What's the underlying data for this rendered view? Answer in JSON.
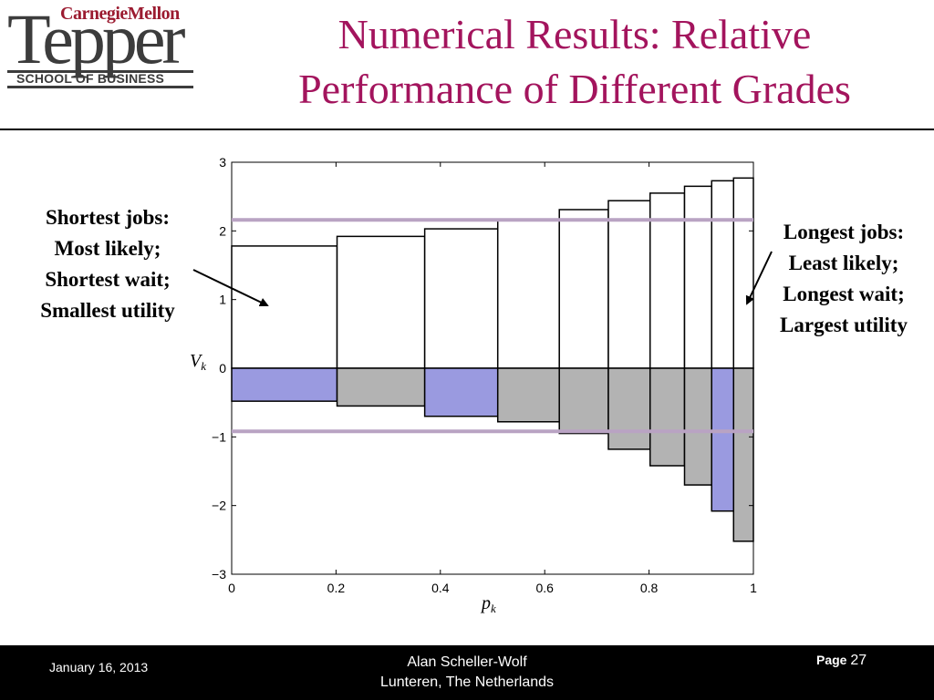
{
  "header": {
    "logo": {
      "top_line": "CarnegieMellon",
      "main": "Tepper",
      "sub": "SCHOOL OF BUSINESS"
    },
    "title_line1": "Numerical Results: Relative",
    "title_line2": "Performance of Different Grades"
  },
  "annotations": {
    "left": [
      "Shortest jobs:",
      "Most likely;",
      "Shortest wait;",
      "Smallest utility"
    ],
    "right": [
      "Longest jobs:",
      "Least likely;",
      "Longest wait;",
      "Largest utility"
    ]
  },
  "chart_data": {
    "type": "bar",
    "xlabel": "p_k",
    "ylabel": "V_k",
    "xlim": [
      0,
      1
    ],
    "ylim": [
      -3,
      3
    ],
    "xticks": [
      "0",
      "0.2",
      "0.4",
      "0.6",
      "0.8",
      "1"
    ],
    "yticks": [
      "3",
      "2",
      "1",
      "0",
      "−1",
      "−2",
      "−3"
    ],
    "grades": [
      {
        "x_start": 0.0,
        "x_end": 0.202,
        "pos": 1.78,
        "neg": -0.48,
        "highlight": true
      },
      {
        "x_start": 0.202,
        "x_end": 0.37,
        "pos": 1.92,
        "neg": -0.55,
        "highlight": false
      },
      {
        "x_start": 0.37,
        "x_end": 0.51,
        "pos": 2.03,
        "neg": -0.7,
        "highlight": true
      },
      {
        "x_start": 0.51,
        "x_end": 0.628,
        "pos": 2.16,
        "neg": -0.78,
        "highlight": false
      },
      {
        "x_start": 0.628,
        "x_end": 0.722,
        "pos": 2.31,
        "neg": -0.95,
        "highlight": false
      },
      {
        "x_start": 0.722,
        "x_end": 0.802,
        "pos": 2.44,
        "neg": -1.18,
        "highlight": false
      },
      {
        "x_start": 0.802,
        "x_end": 0.868,
        "pos": 2.55,
        "neg": -1.42,
        "highlight": false
      },
      {
        "x_start": 0.868,
        "x_end": 0.92,
        "pos": 2.65,
        "neg": -1.7,
        "highlight": false
      },
      {
        "x_start": 0.92,
        "x_end": 0.962,
        "pos": 2.73,
        "neg": -2.08,
        "highlight": true
      },
      {
        "x_start": 0.962,
        "x_end": 1.0,
        "pos": 2.77,
        "neg": -2.52,
        "highlight": false
      }
    ],
    "reference_lines": [
      2.16,
      -0.92
    ],
    "colors": {
      "negative_bar": "#b3b3b3",
      "highlight_bar": "#9a9ae0",
      "reference_line": "#b9a3c3"
    },
    "grid": false
  },
  "footer": {
    "date": "January 16, 2013",
    "author_line1": "Alan Scheller-Wolf",
    "author_line2": "Lunteren, The Netherlands",
    "page_label": "Page",
    "page_number": "27"
  }
}
